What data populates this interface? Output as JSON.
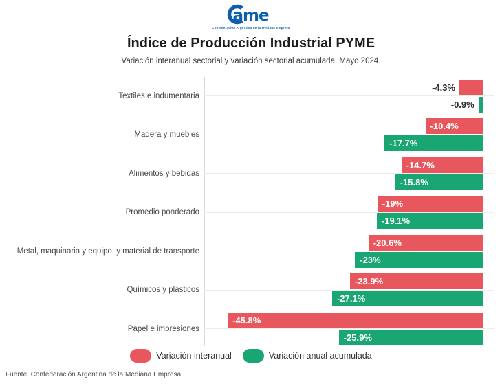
{
  "logo": {
    "text": "Came",
    "tagline": "Confederación Argentina de la Mediana Empresa",
    "color": "#0d5fad"
  },
  "header": {
    "title": "Índice de Producción Industrial PYME",
    "subtitle": "Variación interanual sectorial y variación sectorial acumulada. Mayo 2024."
  },
  "chart_data": {
    "type": "bar",
    "orientation": "horizontal",
    "title": "Índice de Producción Industrial PYME",
    "subtitle": "Variación interanual sectorial y variación sectorial acumulada. Mayo 2024.",
    "categories": [
      "Textiles e indumentaria",
      "Madera y muebles",
      "Alimentos y bebidas",
      "Promedio ponderado",
      "Metal, maquinaria y equipo, y material de transporte",
      "Químicos y plásticos",
      "Papel e impresiones"
    ],
    "series": [
      {
        "name": "Variación interanual",
        "color": "#e8575e",
        "values": [
          -4.3,
          -10.4,
          -14.7,
          -19,
          -20.6,
          -23.9,
          -45.8
        ],
        "display": [
          "-4.3%",
          "-10.4%",
          "-14.7%",
          "-19%",
          "-20.6%",
          "-23.9%",
          "-45.8%"
        ]
      },
      {
        "name": "Variación anual acumulada",
        "color": "#1aa673",
        "values": [
          -0.9,
          -17.7,
          -15.8,
          -19.1,
          -23,
          -27.1,
          -25.9
        ],
        "display": [
          "-0.9%",
          "-17.7%",
          "-15.8%",
          "-19.1%",
          "-23%",
          "-27.1%",
          "-25.9%"
        ]
      }
    ],
    "value_suffix": "%",
    "xlim": [
      -50,
      0
    ],
    "grid": "vertical boundary line at -50 plus one horizontal guide line per category",
    "legend_position": "bottom"
  },
  "legend": {
    "items": [
      {
        "label": "Variación interanual",
        "color": "#e8575e"
      },
      {
        "label": "Variación anual acumulada",
        "color": "#1aa673"
      }
    ]
  },
  "footer": {
    "source": "Fuente: Confederación Argentina de la Mediana Empresa"
  }
}
